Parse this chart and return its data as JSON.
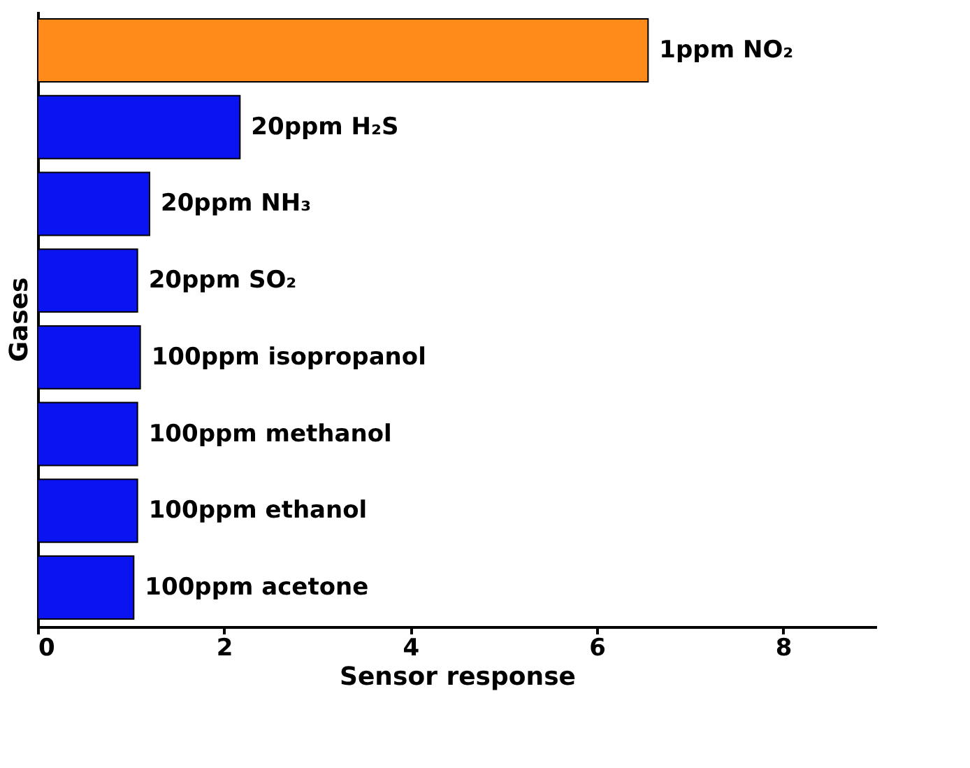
{
  "chart_data": {
    "type": "bar",
    "orientation": "horizontal",
    "xlabel": "Sensor response",
    "ylabel": "Gases",
    "categories": [
      "1ppm NO₂",
      "20ppm H₂S",
      "20ppm NH₃",
      "20ppm SO₂",
      "100ppm isopropanol",
      "100ppm methanol",
      "100ppm ethanol",
      "100ppm acetone"
    ],
    "values": [
      6.55,
      2.17,
      1.2,
      1.07,
      1.1,
      1.07,
      1.07,
      1.03
    ],
    "colors": [
      "#ff8c1a",
      "#0a14f0",
      "#0a14f0",
      "#0a14f0",
      "#0a14f0",
      "#0a14f0",
      "#0a14f0",
      "#0a14f0"
    ],
    "xlim": [
      0,
      9
    ],
    "xticks": [
      0,
      2,
      4,
      6,
      8
    ],
    "grid": false,
    "tick_labels": "x"
  }
}
